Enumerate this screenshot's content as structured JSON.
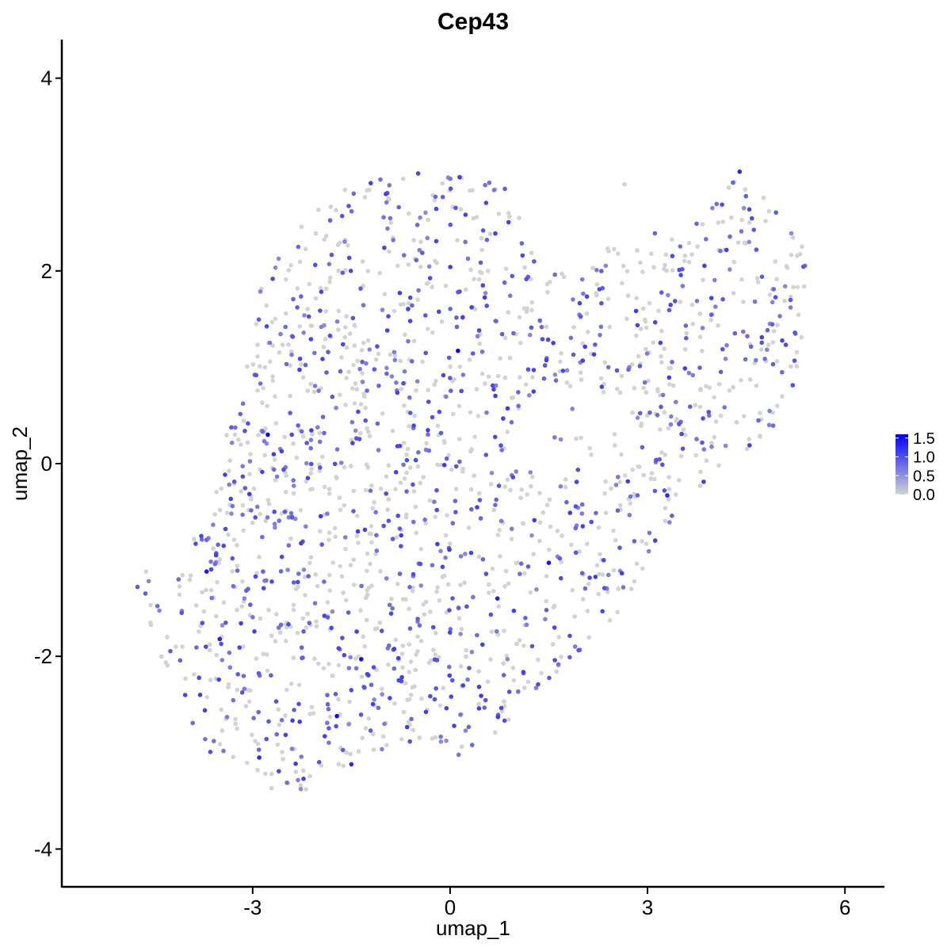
{
  "chart_data": {
    "type": "scatter",
    "title": "Cep43",
    "xlabel": "umap_1",
    "ylabel": "umap_2",
    "xlim": [
      -5.9,
      6.6
    ],
    "ylim": [
      -4.4,
      4.4
    ],
    "x_ticks": [
      "-3",
      "0",
      "3",
      "6"
    ],
    "x_tick_values": [
      -3,
      0,
      3,
      6
    ],
    "y_ticks": [
      "4",
      "2",
      "0",
      "-2",
      "-4"
    ],
    "y_tick_values": [
      4,
      2,
      0,
      -2,
      -4
    ],
    "grid": false,
    "legend": {
      "position": "right",
      "labels": [
        "1.5",
        "1.0",
        "0.5",
        "0.0"
      ],
      "values": [
        1.5,
        1.0,
        0.5,
        0.0
      ],
      "min": 0.0,
      "max": 1.6
    },
    "colors": {
      "low": "#d3d3d3",
      "high": "#0000ff"
    },
    "highlight_points": [
      {
        "x": 0.12,
        "y": 1.17,
        "value": 1.6
      },
      {
        "x": -2.77,
        "y": 0.3,
        "value": 1.55
      },
      {
        "x": -1.35,
        "y": -2.03,
        "value": 1.55
      },
      {
        "x": -1.72,
        "y": -2.62,
        "value": 1.5
      },
      {
        "x": 1.5,
        "y": -1.03,
        "value": 1.45
      },
      {
        "x": -3.7,
        "y": -1.12,
        "value": 1.4
      },
      {
        "x": 0.72,
        "y": -1.4,
        "value": 1.4
      },
      {
        "x": -3.5,
        "y": -1.82,
        "value": 1.35
      },
      {
        "x": 3.3,
        "y": -0.33,
        "value": 1.3
      },
      {
        "x": 4.4,
        "y": 3.03,
        "value": 1.3
      },
      {
        "x": -2.9,
        "y": -3.05,
        "value": 1.3
      },
      {
        "x": -1.5,
        "y": -3.12,
        "value": 1.3
      }
    ],
    "n_points": 1800,
    "fraction_expressing": 0.45
  }
}
